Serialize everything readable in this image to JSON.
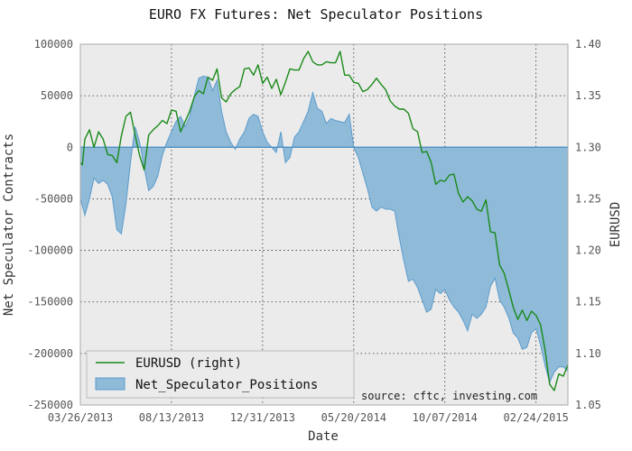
{
  "chart_data": {
    "type": "area",
    "title": "EURO FX Futures: Net Speculator Positions",
    "xlabel": "Date",
    "ylabel": "Net Speculator Contracts",
    "y2label": "EURUSD",
    "ylim": [
      -250000,
      100000
    ],
    "y2lim": [
      1.05,
      1.4
    ],
    "yticks": [
      "100000",
      "50000",
      "0",
      "-50000",
      "-100000",
      "-150000",
      "-200000",
      "-250000"
    ],
    "y2ticks": [
      "1.40",
      "1.35",
      "1.30",
      "1.25",
      "1.20",
      "1.15",
      "1.10",
      "1.05"
    ],
    "xticks": [
      "03/26/2013",
      "08/13/2013",
      "12/31/2013",
      "05/20/2014",
      "10/07/2014",
      "02/24/2015"
    ],
    "x_start": "2013-03-26",
    "x_end": "2015-04-14",
    "grid": true,
    "legend_position": "bottom-left",
    "annotation": "source: cftc, investing.com",
    "colors": {
      "area": "#5c9ccc",
      "line": "#1a8a1a",
      "background": "#ebebeb"
    },
    "series": [
      {
        "name": "Net_Speculator_Positions",
        "kind": "area",
        "axis": "left",
        "x": [
          "2013-03-26",
          "2013-04-02",
          "2013-04-09",
          "2013-04-16",
          "2013-04-23",
          "2013-04-30",
          "2013-05-07",
          "2013-05-14",
          "2013-05-21",
          "2013-05-28",
          "2013-06-04",
          "2013-06-11",
          "2013-06-18",
          "2013-06-25",
          "2013-07-02",
          "2013-07-09",
          "2013-07-16",
          "2013-07-23",
          "2013-07-30",
          "2013-08-06",
          "2013-08-13",
          "2013-08-20",
          "2013-08-27",
          "2013-09-03",
          "2013-09-10",
          "2013-09-17",
          "2013-09-24",
          "2013-10-01",
          "2013-10-08",
          "2013-10-15",
          "2013-10-22",
          "2013-10-29",
          "2013-11-05",
          "2013-11-12",
          "2013-11-19",
          "2013-11-26",
          "2013-12-03",
          "2013-12-10",
          "2013-12-17",
          "2013-12-24",
          "2013-12-31",
          "2014-01-07",
          "2014-01-14",
          "2014-01-21",
          "2014-01-28",
          "2014-02-04",
          "2014-02-11",
          "2014-02-18",
          "2014-02-25",
          "2014-03-04",
          "2014-03-11",
          "2014-03-18",
          "2014-03-25",
          "2014-04-01",
          "2014-04-08",
          "2014-04-15",
          "2014-04-22",
          "2014-04-29",
          "2014-05-06",
          "2014-05-13",
          "2014-05-20",
          "2014-05-27",
          "2014-06-03",
          "2014-06-10",
          "2014-06-17",
          "2014-06-24",
          "2014-07-01",
          "2014-07-08",
          "2014-07-15",
          "2014-07-22",
          "2014-07-29",
          "2014-08-05",
          "2014-08-12",
          "2014-08-19",
          "2014-08-26",
          "2014-09-02",
          "2014-09-09",
          "2014-09-16",
          "2014-09-23",
          "2014-09-30",
          "2014-10-07",
          "2014-10-14",
          "2014-10-21",
          "2014-10-28",
          "2014-11-04",
          "2014-11-11",
          "2014-11-18",
          "2014-11-25",
          "2014-12-02",
          "2014-12-09",
          "2014-12-16",
          "2014-12-23",
          "2014-12-30",
          "2015-01-06",
          "2015-01-13",
          "2015-01-20",
          "2015-01-27",
          "2015-02-03",
          "2015-02-10",
          "2015-02-17",
          "2015-02-24",
          "2015-03-03",
          "2015-03-10",
          "2015-03-17",
          "2015-03-24",
          "2015-03-31",
          "2015-04-07",
          "2015-04-14"
        ],
        "values": [
          -50000,
          -66000,
          -50000,
          -30000,
          -35000,
          -32000,
          -36000,
          -48000,
          -80000,
          -84000,
          -55000,
          -15000,
          20000,
          5000,
          -20000,
          -42000,
          -38000,
          -28000,
          -8000,
          5000,
          15000,
          25000,
          30000,
          20000,
          30000,
          50000,
          67000,
          69000,
          68000,
          55000,
          65000,
          35000,
          15000,
          5000,
          -2000,
          8000,
          15000,
          28000,
          32000,
          30000,
          15000,
          5000,
          0,
          -5000,
          15000,
          -15000,
          -10000,
          10000,
          15000,
          25000,
          35000,
          53000,
          38000,
          35000,
          23000,
          28000,
          26000,
          25000,
          24000,
          32000,
          0,
          -10000,
          -25000,
          -40000,
          -58000,
          -62000,
          -58000,
          -60000,
          -60000,
          -62000,
          -88000,
          -110000,
          -130000,
          -128000,
          -136000,
          -148000,
          -160000,
          -157000,
          -138000,
          -142000,
          -138000,
          -148000,
          -155000,
          -160000,
          -168000,
          -178000,
          -162000,
          -166000,
          -162000,
          -155000,
          -135000,
          -127000,
          -148000,
          -155000,
          -165000,
          -180000,
          -185000,
          -196000,
          -194000,
          -180000,
          -176000,
          -192000,
          -212000,
          -228000,
          -218000,
          -213000,
          -213000,
          -217000
        ]
      },
      {
        "name": "EURUSD (right)",
        "kind": "line",
        "axis": "right",
        "x": [
          "2013-03-26",
          "2013-03-29",
          "2013-04-02",
          "2013-04-09",
          "2013-04-16",
          "2013-04-23",
          "2013-04-30",
          "2013-05-07",
          "2013-05-14",
          "2013-05-21",
          "2013-05-28",
          "2013-06-04",
          "2013-06-11",
          "2013-06-18",
          "2013-06-25",
          "2013-07-02",
          "2013-07-09",
          "2013-07-16",
          "2013-07-23",
          "2013-07-30",
          "2013-08-06",
          "2013-08-13",
          "2013-08-20",
          "2013-08-27",
          "2013-09-03",
          "2013-09-10",
          "2013-09-17",
          "2013-09-24",
          "2013-10-01",
          "2013-10-08",
          "2013-10-15",
          "2013-10-22",
          "2013-10-29",
          "2013-11-05",
          "2013-11-12",
          "2013-11-19",
          "2013-11-26",
          "2013-12-03",
          "2013-12-10",
          "2013-12-17",
          "2013-12-24",
          "2013-12-31",
          "2014-01-07",
          "2014-01-14",
          "2014-01-21",
          "2014-01-28",
          "2014-02-04",
          "2014-02-11",
          "2014-02-18",
          "2014-02-25",
          "2014-03-04",
          "2014-03-11",
          "2014-03-18",
          "2014-03-25",
          "2014-04-01",
          "2014-04-08",
          "2014-04-15",
          "2014-04-22",
          "2014-04-29",
          "2014-05-06",
          "2014-05-13",
          "2014-05-20",
          "2014-05-27",
          "2014-06-03",
          "2014-06-10",
          "2014-06-17",
          "2014-06-24",
          "2014-07-01",
          "2014-07-08",
          "2014-07-15",
          "2014-07-22",
          "2014-07-29",
          "2014-08-05",
          "2014-08-12",
          "2014-08-19",
          "2014-08-26",
          "2014-09-02",
          "2014-09-09",
          "2014-09-16",
          "2014-09-23",
          "2014-09-30",
          "2014-10-07",
          "2014-10-14",
          "2014-10-21",
          "2014-10-28",
          "2014-11-04",
          "2014-11-11",
          "2014-11-18",
          "2014-11-25",
          "2014-12-02",
          "2014-12-09",
          "2014-12-16",
          "2014-12-23",
          "2014-12-30",
          "2015-01-06",
          "2015-01-13",
          "2015-01-20",
          "2015-01-27",
          "2015-02-03",
          "2015-02-10",
          "2015-02-17",
          "2015-02-24",
          "2015-03-03",
          "2015-03-10",
          "2015-03-17",
          "2015-03-24",
          "2015-03-31",
          "2015-04-07",
          "2015-04-14"
        ],
        "values": [
          1.285,
          1.283,
          1.308,
          1.317,
          1.3,
          1.315,
          1.308,
          1.293,
          1.292,
          1.285,
          1.311,
          1.33,
          1.334,
          1.312,
          1.292,
          1.278,
          1.312,
          1.317,
          1.321,
          1.326,
          1.323,
          1.336,
          1.335,
          1.315,
          1.325,
          1.335,
          1.349,
          1.355,
          1.352,
          1.368,
          1.365,
          1.376,
          1.348,
          1.344,
          1.352,
          1.356,
          1.359,
          1.376,
          1.377,
          1.37,
          1.38,
          1.362,
          1.368,
          1.357,
          1.366,
          1.351,
          1.363,
          1.376,
          1.375,
          1.375,
          1.386,
          1.393,
          1.383,
          1.38,
          1.38,
          1.383,
          1.382,
          1.382,
          1.393,
          1.37,
          1.37,
          1.363,
          1.362,
          1.354,
          1.356,
          1.361,
          1.367,
          1.361,
          1.356,
          1.345,
          1.34,
          1.337,
          1.337,
          1.333,
          1.318,
          1.315,
          1.295,
          1.296,
          1.285,
          1.264,
          1.268,
          1.267,
          1.273,
          1.274,
          1.255,
          1.247,
          1.252,
          1.248,
          1.24,
          1.238,
          1.249,
          1.218,
          1.217,
          1.186,
          1.178,
          1.162,
          1.145,
          1.133,
          1.142,
          1.132,
          1.141,
          1.137,
          1.128,
          1.103,
          1.07,
          1.064,
          1.08,
          1.078,
          1.089
        ]
      }
    ]
  }
}
